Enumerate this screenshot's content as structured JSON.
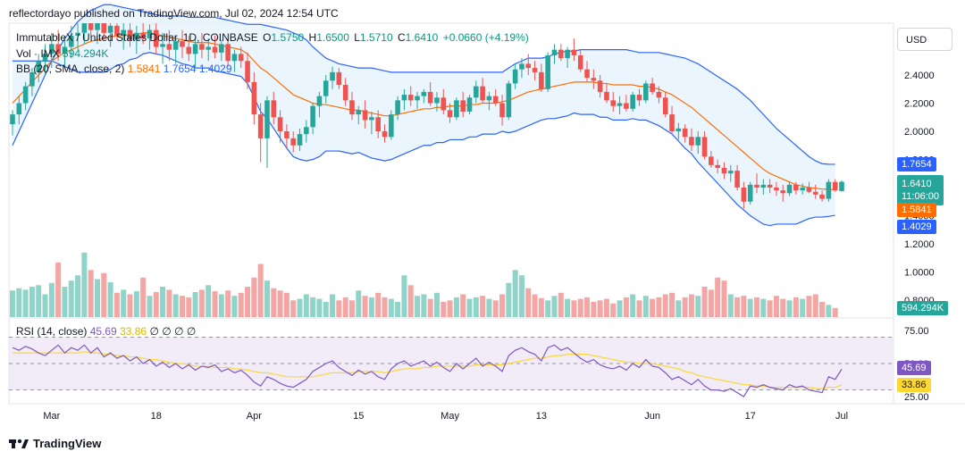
{
  "header": {
    "publisher_line": "reflectordayo published on TradingView.com, Jul 02, 2024 12:54 UTC"
  },
  "legend": {
    "symbol": "ImmutableX / United States Dollar, 1D, COINBASE",
    "open_label": "O",
    "open": "1.5750",
    "high_label": "H",
    "high": "1.6500",
    "low_label": "L",
    "low": "1.5710",
    "close_label": "C",
    "close": "1.6410",
    "change": "+0.0660 (+4.19%)",
    "vol_label": "Vol · IMX",
    "vol_value": "594.294K",
    "bb_label": "BB (20, SMA, close, 2)",
    "bb_basis": "1.5841",
    "bb_upper": "1.7654",
    "bb_lower": "1.4029",
    "rsi_label": "RSI (14, close)",
    "rsi_value": "45.69",
    "rsi_ma": "33.86",
    "rsi_extra": "∅ ∅ ∅ ∅"
  },
  "currency_button": "USD",
  "price_tags": {
    "upper": "1.7654",
    "last": "1.6410",
    "countdown": "11:06:00",
    "basis": "1.5841",
    "lower": "1.4029",
    "volume": "594.294K",
    "rsi": "45.69",
    "rsi_ma": "33.86"
  },
  "colors": {
    "up": "#26a69a",
    "down": "#ef5350",
    "vol_up": "#8fd3c9",
    "vol_down": "#f3a6a4",
    "bb_band": "#2962ff",
    "bb_basis": "#ff6d00",
    "bb_fill": "#e3f2fd",
    "rsi_line": "#7e57c2",
    "rsi_ma": "#fdd835",
    "rsi_fill": "#ede7f6"
  },
  "footer": {
    "logo_text": "TradingView"
  },
  "chart_data": {
    "type": "candlestick",
    "price_axis": {
      "ticks": [
        "2.4000",
        "2.2000",
        "2.0000",
        "1.8000",
        "1.6000",
        "1.4000",
        "1.2000",
        "1.0000",
        "0.8000"
      ],
      "range": [
        0.8,
        2.6
      ]
    },
    "rsi_axis": {
      "ticks": [
        "75.00",
        "50.00",
        "25.00"
      ],
      "range": [
        25,
        75
      ],
      "bands": [
        70,
        50,
        30
      ]
    },
    "x_labels": [
      "Mar",
      "18",
      "Apr",
      "15",
      "May",
      "13",
      "Jun",
      "17",
      "Jul"
    ],
    "x_label_index": [
      6,
      22,
      37,
      53,
      67,
      81,
      98,
      113,
      127
    ],
    "candles": [
      [
        2.05,
        2.15,
        1.97,
        2.12
      ],
      [
        2.12,
        2.25,
        2.05,
        2.2
      ],
      [
        2.2,
        2.35,
        2.15,
        2.32
      ],
      [
        2.32,
        2.45,
        2.25,
        2.42
      ],
      [
        2.42,
        2.55,
        2.35,
        2.5
      ],
      [
        2.5,
        2.62,
        2.4,
        2.55
      ],
      [
        2.55,
        2.7,
        2.45,
        2.62
      ],
      [
        2.62,
        2.72,
        2.5,
        2.55
      ],
      [
        2.55,
        2.68,
        2.45,
        2.6
      ],
      [
        2.6,
        2.75,
        2.52,
        2.68
      ],
      [
        2.68,
        2.8,
        2.58,
        2.7
      ],
      [
        2.7,
        2.85,
        2.62,
        2.78
      ],
      [
        2.78,
        2.9,
        2.68,
        2.72
      ],
      [
        2.72,
        2.85,
        2.62,
        2.8
      ],
      [
        2.8,
        2.88,
        2.65,
        2.7
      ],
      [
        2.7,
        2.82,
        2.6,
        2.75
      ],
      [
        2.75,
        2.85,
        2.65,
        2.68
      ],
      [
        2.68,
        2.78,
        2.58,
        2.72
      ],
      [
        2.72,
        2.8,
        2.6,
        2.65
      ],
      [
        2.65,
        2.75,
        2.55,
        2.7
      ],
      [
        2.7,
        2.8,
        2.62,
        2.66
      ],
      [
        2.66,
        2.76,
        2.58,
        2.72
      ],
      [
        2.72,
        2.8,
        2.55,
        2.6
      ],
      [
        2.6,
        2.7,
        2.48,
        2.62
      ],
      [
        2.62,
        2.72,
        2.5,
        2.58
      ],
      [
        2.58,
        2.68,
        2.48,
        2.64
      ],
      [
        2.64,
        2.72,
        2.52,
        2.6
      ],
      [
        2.6,
        2.68,
        2.5,
        2.55
      ],
      [
        2.55,
        2.65,
        2.45,
        2.62
      ],
      [
        2.62,
        2.7,
        2.52,
        2.58
      ],
      [
        2.58,
        2.66,
        2.5,
        2.6
      ],
      [
        2.6,
        2.68,
        2.52,
        2.56
      ],
      [
        2.56,
        2.65,
        2.5,
        2.62
      ],
      [
        2.62,
        2.66,
        2.46,
        2.5
      ],
      [
        2.5,
        2.58,
        2.42,
        2.55
      ],
      [
        2.55,
        2.6,
        2.45,
        2.5
      ],
      [
        2.5,
        2.56,
        2.3,
        2.35
      ],
      [
        2.35,
        2.42,
        2.05,
        2.12
      ],
      [
        2.12,
        2.2,
        1.78,
        1.95
      ],
      [
        1.95,
        2.25,
        1.74,
        2.22
      ],
      [
        2.22,
        2.28,
        2.05,
        2.1
      ],
      [
        2.1,
        2.15,
        1.92,
        2.0
      ],
      [
        2.0,
        2.05,
        1.88,
        1.95
      ],
      [
        1.95,
        2.0,
        1.85,
        1.9
      ],
      [
        1.9,
        2.02,
        1.86,
        1.98
      ],
      [
        1.98,
        2.08,
        1.92,
        2.03
      ],
      [
        2.03,
        2.2,
        1.98,
        2.18
      ],
      [
        2.18,
        2.28,
        2.1,
        2.25
      ],
      [
        2.25,
        2.4,
        2.2,
        2.36
      ],
      [
        2.36,
        2.46,
        2.3,
        2.42
      ],
      [
        2.42,
        2.45,
        2.3,
        2.33
      ],
      [
        2.33,
        2.38,
        2.18,
        2.22
      ],
      [
        2.22,
        2.28,
        2.08,
        2.12
      ],
      [
        2.12,
        2.18,
        2.05,
        2.15
      ],
      [
        2.15,
        2.22,
        2.02,
        2.08
      ],
      [
        2.08,
        2.14,
        1.98,
        2.1
      ],
      [
        2.1,
        2.15,
        1.95,
        2.0
      ],
      [
        2.0,
        2.05,
        1.92,
        1.96
      ],
      [
        1.96,
        2.15,
        1.94,
        2.12
      ],
      [
        2.12,
        2.25,
        2.08,
        2.22
      ],
      [
        2.22,
        2.3,
        2.15,
        2.26
      ],
      [
        2.26,
        2.32,
        2.18,
        2.22
      ],
      [
        2.22,
        2.28,
        2.16,
        2.25
      ],
      [
        2.25,
        2.3,
        2.2,
        2.28
      ],
      [
        2.28,
        2.35,
        2.18,
        2.2
      ],
      [
        2.2,
        2.28,
        2.14,
        2.24
      ],
      [
        2.24,
        2.3,
        2.12,
        2.15
      ],
      [
        2.15,
        2.2,
        2.06,
        2.1
      ],
      [
        2.1,
        2.24,
        2.08,
        2.22
      ],
      [
        2.22,
        2.28,
        2.1,
        2.14
      ],
      [
        2.14,
        2.26,
        2.12,
        2.24
      ],
      [
        2.24,
        2.36,
        2.2,
        2.32
      ],
      [
        2.32,
        2.38,
        2.2,
        2.22
      ],
      [
        2.22,
        2.28,
        2.15,
        2.25
      ],
      [
        2.25,
        2.3,
        2.18,
        2.2
      ],
      [
        2.2,
        2.26,
        2.04,
        2.1
      ],
      [
        2.1,
        2.36,
        2.08,
        2.34
      ],
      [
        2.34,
        2.48,
        2.3,
        2.44
      ],
      [
        2.44,
        2.52,
        2.38,
        2.48
      ],
      [
        2.48,
        2.55,
        2.4,
        2.45
      ],
      [
        2.45,
        2.5,
        2.36,
        2.42
      ],
      [
        2.42,
        2.48,
        2.28,
        2.3
      ],
      [
        2.3,
        2.56,
        2.28,
        2.54
      ],
      [
        2.54,
        2.62,
        2.48,
        2.58
      ],
      [
        2.58,
        2.62,
        2.5,
        2.52
      ],
      [
        2.52,
        2.6,
        2.45,
        2.58
      ],
      [
        2.58,
        2.66,
        2.5,
        2.54
      ],
      [
        2.54,
        2.58,
        2.42,
        2.44
      ],
      [
        2.44,
        2.5,
        2.35,
        2.38
      ],
      [
        2.38,
        2.44,
        2.3,
        2.36
      ],
      [
        2.36,
        2.4,
        2.24,
        2.28
      ],
      [
        2.28,
        2.34,
        2.2,
        2.22
      ],
      [
        2.22,
        2.28,
        2.14,
        2.18
      ],
      [
        2.18,
        2.25,
        2.12,
        2.2
      ],
      [
        2.2,
        2.26,
        2.14,
        2.16
      ],
      [
        2.16,
        2.28,
        2.14,
        2.26
      ],
      [
        2.26,
        2.3,
        2.18,
        2.22
      ],
      [
        2.22,
        2.36,
        2.2,
        2.34
      ],
      [
        2.34,
        2.38,
        2.26,
        2.28
      ],
      [
        2.28,
        2.32,
        2.2,
        2.24
      ],
      [
        2.24,
        2.28,
        2.1,
        2.12
      ],
      [
        2.12,
        2.18,
        1.98,
        2.0
      ],
      [
        2.0,
        2.06,
        1.94,
        2.02
      ],
      [
        2.02,
        2.05,
        1.92,
        1.96
      ],
      [
        1.96,
        2.02,
        1.86,
        1.9
      ],
      [
        1.9,
        2.0,
        1.84,
        1.96
      ],
      [
        1.96,
        2.0,
        1.8,
        1.82
      ],
      [
        1.82,
        1.86,
        1.74,
        1.76
      ],
      [
        1.76,
        1.8,
        1.7,
        1.74
      ],
      [
        1.74,
        1.78,
        1.66,
        1.7
      ],
      [
        1.7,
        1.76,
        1.64,
        1.72
      ],
      [
        1.72,
        1.76,
        1.58,
        1.6
      ],
      [
        1.6,
        1.64,
        1.45,
        1.5
      ],
      [
        1.5,
        1.64,
        1.48,
        1.62
      ],
      [
        1.62,
        1.7,
        1.56,
        1.6
      ],
      [
        1.6,
        1.66,
        1.55,
        1.62
      ],
      [
        1.62,
        1.66,
        1.56,
        1.6
      ],
      [
        1.6,
        1.64,
        1.54,
        1.58
      ],
      [
        1.58,
        1.62,
        1.5,
        1.56
      ],
      [
        1.56,
        1.64,
        1.54,
        1.62
      ],
      [
        1.62,
        1.64,
        1.55,
        1.58
      ],
      [
        1.58,
        1.63,
        1.55,
        1.6
      ],
      [
        1.6,
        1.64,
        1.56,
        1.57
      ],
      [
        1.57,
        1.62,
        1.52,
        1.55
      ],
      [
        1.55,
        1.58,
        1.5,
        1.52
      ],
      [
        1.52,
        1.66,
        1.5,
        1.64
      ],
      [
        1.64,
        1.66,
        1.57,
        1.58
      ],
      [
        1.575,
        1.65,
        1.571,
        1.641
      ]
    ],
    "volume": [
      0.35,
      0.38,
      0.36,
      0.4,
      0.42,
      0.3,
      0.45,
      0.72,
      0.4,
      0.48,
      0.55,
      0.85,
      0.62,
      0.5,
      0.58,
      0.46,
      0.32,
      0.36,
      0.3,
      0.34,
      0.52,
      0.28,
      0.33,
      0.4,
      0.36,
      0.3,
      0.28,
      0.26,
      0.33,
      0.36,
      0.42,
      0.34,
      0.3,
      0.35,
      0.28,
      0.32,
      0.4,
      0.52,
      0.7,
      0.48,
      0.38,
      0.35,
      0.32,
      0.22,
      0.24,
      0.3,
      0.26,
      0.24,
      0.2,
      0.3,
      0.22,
      0.26,
      0.22,
      0.35,
      0.28,
      0.26,
      0.32,
      0.26,
      0.24,
      0.2,
      0.55,
      0.42,
      0.28,
      0.3,
      0.24,
      0.32,
      0.2,
      0.22,
      0.26,
      0.3,
      0.24,
      0.26,
      0.28,
      0.24,
      0.22,
      0.3,
      0.45,
      0.62,
      0.55,
      0.38,
      0.3,
      0.25,
      0.22,
      0.28,
      0.32,
      0.24,
      0.22,
      0.24,
      0.26,
      0.2,
      0.22,
      0.24,
      0.18,
      0.22,
      0.26,
      0.3,
      0.22,
      0.28,
      0.24,
      0.26,
      0.3,
      0.32,
      0.22,
      0.26,
      0.3,
      0.28,
      0.4,
      0.36,
      0.52,
      0.48,
      0.3,
      0.26,
      0.28,
      0.24,
      0.26,
      0.24,
      0.22,
      0.28,
      0.24,
      0.22,
      0.26,
      0.24,
      0.28,
      0.3,
      0.2,
      0.16,
      0.12
    ],
    "bb_upper": [
      1.9,
      2.0,
      2.1,
      2.2,
      2.3,
      2.4,
      2.5,
      2.58,
      2.66,
      2.72,
      2.78,
      2.82,
      2.86,
      2.88,
      2.9,
      2.9,
      2.89,
      2.88,
      2.87,
      2.86,
      2.85,
      2.84,
      2.83,
      2.82,
      2.82,
      2.82,
      2.82,
      2.81,
      2.81,
      2.81,
      2.81,
      2.81,
      2.8,
      2.79,
      2.78,
      2.77,
      2.76,
      2.76,
      2.76,
      2.75,
      2.74,
      2.73,
      2.72,
      2.7,
      2.68,
      2.65,
      2.6,
      2.56,
      2.52,
      2.5,
      2.48,
      2.47,
      2.46,
      2.45,
      2.45,
      2.45,
      2.44,
      2.43,
      2.42,
      2.42,
      2.42,
      2.42,
      2.42,
      2.42,
      2.42,
      2.42,
      2.42,
      2.42,
      2.42,
      2.42,
      2.42,
      2.42,
      2.42,
      2.42,
      2.42,
      2.42,
      2.45,
      2.48,
      2.5,
      2.52,
      2.52,
      2.52,
      2.53,
      2.55,
      2.56,
      2.57,
      2.57,
      2.58,
      2.58,
      2.58,
      2.58,
      2.58,
      2.58,
      2.58,
      2.58,
      2.57,
      2.56,
      2.56,
      2.56,
      2.56,
      2.55,
      2.54,
      2.53,
      2.52,
      2.5,
      2.48,
      2.45,
      2.42,
      2.39,
      2.36,
      2.33,
      2.3,
      2.26,
      2.22,
      2.17,
      2.12,
      2.07,
      2.02,
      1.98,
      1.94,
      1.9,
      1.86,
      1.82,
      1.79,
      1.77,
      1.766,
      1.7654
    ],
    "bb_basis": [
      2.2,
      2.25,
      2.3,
      2.35,
      2.4,
      2.45,
      2.5,
      2.53,
      2.56,
      2.58,
      2.6,
      2.62,
      2.64,
      2.65,
      2.66,
      2.67,
      2.68,
      2.68,
      2.69,
      2.69,
      2.7,
      2.7,
      2.69,
      2.68,
      2.67,
      2.66,
      2.65,
      2.64,
      2.63,
      2.63,
      2.63,
      2.62,
      2.61,
      2.6,
      2.59,
      2.58,
      2.55,
      2.5,
      2.45,
      2.42,
      2.38,
      2.34,
      2.3,
      2.26,
      2.24,
      2.22,
      2.2,
      2.19,
      2.19,
      2.18,
      2.17,
      2.16,
      2.15,
      2.15,
      2.14,
      2.13,
      2.12,
      2.11,
      2.11,
      2.12,
      2.13,
      2.14,
      2.15,
      2.16,
      2.16,
      2.17,
      2.17,
      2.18,
      2.18,
      2.18,
      2.19,
      2.19,
      2.2,
      2.2,
      2.2,
      2.21,
      2.22,
      2.24,
      2.26,
      2.28,
      2.29,
      2.3,
      2.31,
      2.32,
      2.33,
      2.34,
      2.35,
      2.35,
      2.35,
      2.35,
      2.34,
      2.34,
      2.33,
      2.33,
      2.33,
      2.33,
      2.32,
      2.32,
      2.31,
      2.3,
      2.28,
      2.26,
      2.23,
      2.2,
      2.17,
      2.13,
      2.09,
      2.05,
      2.01,
      1.97,
      1.93,
      1.89,
      1.85,
      1.81,
      1.77,
      1.73,
      1.7,
      1.68,
      1.66,
      1.64,
      1.62,
      1.61,
      1.6,
      1.595,
      1.59,
      1.587,
      1.5841
    ],
    "bb_lower": [
      2.5,
      2.5,
      2.5,
      2.5,
      2.5,
      2.5,
      2.5,
      2.48,
      2.46,
      2.44,
      2.42,
      2.42,
      2.42,
      2.42,
      2.42,
      2.44,
      2.47,
      2.48,
      2.51,
      2.52,
      2.55,
      2.56,
      2.55,
      2.54,
      2.52,
      2.5,
      2.48,
      2.47,
      2.45,
      2.45,
      2.45,
      2.43,
      2.42,
      2.41,
      2.4,
      2.39,
      2.34,
      2.24,
      2.14,
      2.09,
      2.02,
      1.95,
      1.88,
      1.82,
      1.8,
      1.79,
      1.8,
      1.82,
      1.86,
      1.86,
      1.86,
      1.85,
      1.84,
      1.85,
      1.83,
      1.81,
      1.8,
      1.79,
      1.8,
      1.82,
      1.84,
      1.86,
      1.88,
      1.9,
      1.9,
      1.92,
      1.92,
      1.94,
      1.94,
      1.94,
      1.96,
      1.96,
      1.98,
      1.98,
      1.98,
      2.0,
      1.99,
      2.0,
      2.02,
      2.04,
      2.06,
      2.08,
      2.09,
      2.09,
      2.1,
      2.11,
      2.13,
      2.12,
      2.12,
      2.12,
      2.1,
      2.1,
      2.08,
      2.08,
      2.08,
      2.09,
      2.08,
      2.08,
      2.06,
      2.04,
      2.01,
      1.98,
      1.93,
      1.88,
      1.84,
      1.78,
      1.73,
      1.68,
      1.63,
      1.58,
      1.53,
      1.48,
      1.44,
      1.4,
      1.37,
      1.34,
      1.33,
      1.34,
      1.34,
      1.34,
      1.34,
      1.36,
      1.38,
      1.39,
      1.39,
      1.395,
      1.4029
    ],
    "rsi": [
      62,
      60,
      63,
      61,
      58,
      56,
      60,
      64,
      58,
      62,
      60,
      64,
      58,
      62,
      55,
      58,
      54,
      56,
      52,
      55,
      50,
      53,
      48,
      51,
      47,
      50,
      46,
      49,
      45,
      48,
      47,
      49,
      44,
      46,
      43,
      45,
      41,
      36,
      33,
      40,
      38,
      35,
      33,
      32,
      35,
      38,
      44,
      47,
      50,
      52,
      47,
      44,
      41,
      45,
      42,
      44,
      40,
      38,
      46,
      50,
      52,
      48,
      50,
      52,
      48,
      51,
      47,
      44,
      50,
      46,
      50,
      54,
      48,
      51,
      48,
      44,
      56,
      60,
      62,
      59,
      57,
      52,
      62,
      64,
      60,
      62,
      58,
      54,
      51,
      53,
      49,
      47,
      46,
      48,
      45,
      50,
      47,
      53,
      48,
      47,
      43,
      38,
      40,
      37,
      34,
      38,
      33,
      30,
      30,
      29,
      31,
      28,
      25,
      33,
      32,
      34,
      32,
      31,
      30,
      34,
      32,
      33,
      30,
      29,
      28,
      40,
      38,
      45.69
    ],
    "rsi_ma": [
      58,
      58,
      58,
      58,
      58,
      58,
      58,
      58,
      58,
      58,
      58,
      59,
      58,
      58,
      57,
      57,
      56,
      56,
      55,
      55,
      54,
      53,
      53,
      52,
      51,
      50,
      50,
      49,
      48,
      48,
      48,
      47,
      47,
      47,
      46,
      46,
      45,
      44,
      43,
      43,
      42,
      41,
      40,
      40,
      40,
      40,
      40,
      41,
      42,
      43,
      43,
      43,
      43,
      44,
      44,
      44,
      44,
      43,
      44,
      45,
      46,
      46,
      46,
      47,
      47,
      48,
      48,
      48,
      48,
      48,
      48,
      49,
      49,
      49,
      49,
      49,
      50,
      51,
      52,
      53,
      54,
      54,
      55,
      56,
      56,
      57,
      57,
      57,
      57,
      56,
      55,
      54,
      53,
      52,
      51,
      51,
      50,
      50,
      50,
      49,
      48,
      47,
      46,
      44,
      43,
      41,
      40,
      39,
      38,
      37,
      36,
      35,
      34,
      34,
      33,
      33,
      32,
      32,
      32,
      32,
      32,
      32,
      32,
      31,
      31,
      32,
      32,
      33.86
    ]
  }
}
